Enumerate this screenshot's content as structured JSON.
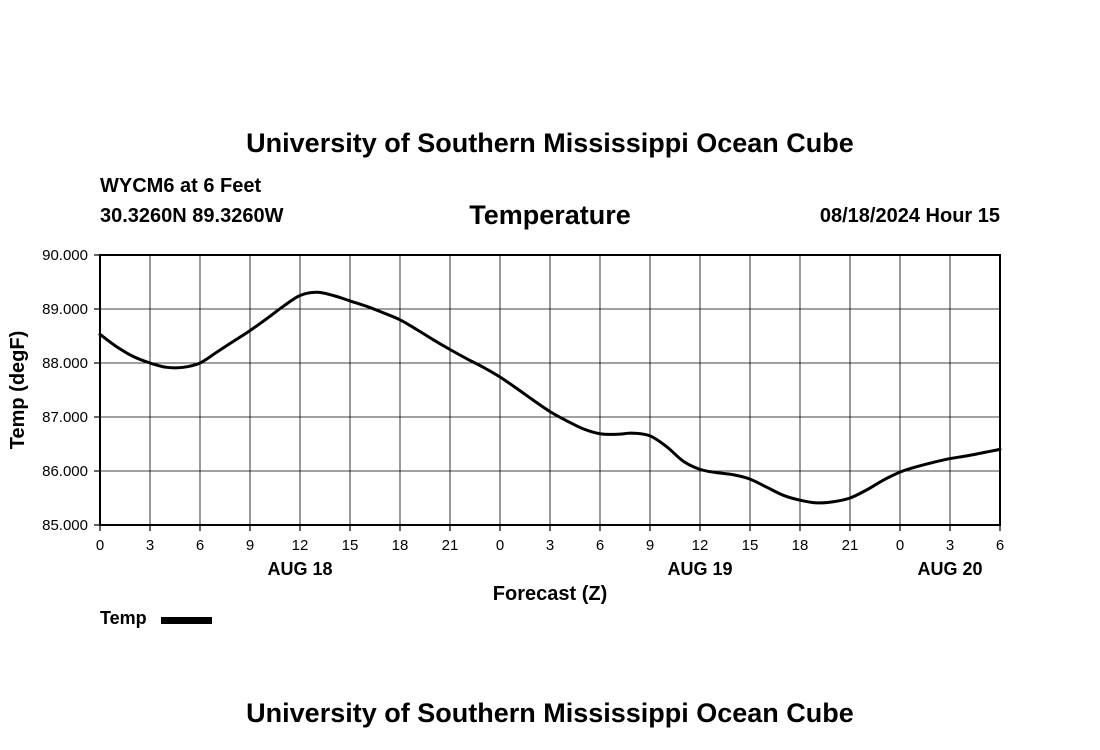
{
  "header": {
    "title": "University of Southern Mississippi Ocean Cube",
    "station": "WYCM6 at 6 Feet",
    "coords": "30.3260N  89.3260W",
    "parameter": "Temperature",
    "datetime": "08/18/2024 Hour 15"
  },
  "footer": {
    "title": "University of Southern Mississippi Ocean Cube"
  },
  "legend": {
    "label": "Temp"
  },
  "chart_data": {
    "type": "line",
    "title": "Temperature",
    "xlabel": "Forecast (Z)",
    "ylabel": "Temp (degF)",
    "xlim": [
      0,
      54
    ],
    "ylim": [
      85.0,
      90.0
    ],
    "x_ticks": [
      0,
      3,
      6,
      9,
      12,
      15,
      18,
      21,
      24,
      27,
      30,
      33,
      36,
      39,
      42,
      45,
      48,
      51,
      54
    ],
    "x_tick_labels": [
      "0",
      "3",
      "6",
      "9",
      "12",
      "15",
      "18",
      "21",
      "0",
      "3",
      "6",
      "9",
      "12",
      "15",
      "18",
      "21",
      "0",
      "3",
      "6"
    ],
    "y_ticks": [
      85.0,
      86.0,
      87.0,
      88.0,
      89.0,
      90.0
    ],
    "y_tick_labels": [
      "85.000",
      "86.000",
      "87.000",
      "88.000",
      "89.000",
      "90.000"
    ],
    "day_labels": [
      {
        "x": 12,
        "label": "AUG 18"
      },
      {
        "x": 36,
        "label": "AUG 19"
      },
      {
        "x": 51,
        "label": "AUG 20"
      }
    ],
    "grid": true,
    "series": [
      {
        "name": "Temp",
        "color": "#000000",
        "x": [
          0,
          1,
          2,
          3,
          4,
          5,
          6,
          7,
          8,
          9,
          10,
          11,
          12,
          13,
          14,
          15,
          16,
          17,
          18,
          19,
          20,
          21,
          22,
          23,
          24,
          25,
          26,
          27,
          28,
          29,
          30,
          31,
          32,
          33,
          34,
          35,
          36,
          37,
          38,
          39,
          40,
          41,
          42,
          43,
          44,
          45,
          46,
          47,
          48,
          49,
          50,
          51,
          52,
          53,
          54
        ],
        "y": [
          88.53,
          88.3,
          88.12,
          88.0,
          87.92,
          87.92,
          88.0,
          88.2,
          88.4,
          88.6,
          88.82,
          89.05,
          89.25,
          89.31,
          89.25,
          89.15,
          89.05,
          88.93,
          88.8,
          88.62,
          88.43,
          88.25,
          88.08,
          87.92,
          87.74,
          87.53,
          87.31,
          87.1,
          86.93,
          86.78,
          86.69,
          86.68,
          86.7,
          86.65,
          86.45,
          86.18,
          86.03,
          85.97,
          85.93,
          85.85,
          85.7,
          85.55,
          85.46,
          85.41,
          85.43,
          85.5,
          85.65,
          85.83,
          85.98,
          86.08,
          86.16,
          86.23,
          86.28,
          86.34,
          86.4
        ]
      }
    ]
  }
}
